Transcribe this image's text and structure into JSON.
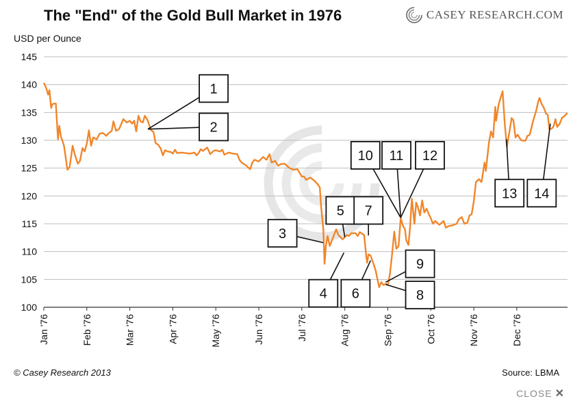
{
  "title": "The \"End\" of the Gold Bull Market in 1976",
  "brand": "CASEY RESEARCH.COM",
  "copyright": "© Casey Research 2013",
  "source": "Source: LBMA",
  "close_label": "CLOSE",
  "colors": {
    "line": "#f0862a",
    "grid": "#bdbdbd",
    "axis": "#333333",
    "box_border": "#111111"
  },
  "chart_data": {
    "type": "line",
    "title": "The \"End\" of the Gold Bull Market in 1976",
    "xlabel": "",
    "ylabel": "USD per Ounce",
    "ylim": [
      100,
      145
    ],
    "yticks": [
      100,
      105,
      110,
      115,
      120,
      125,
      130,
      135,
      140,
      145
    ],
    "grid": true,
    "months": [
      "Jan '76",
      "Feb '76",
      "Mar '76",
      "Apr '76",
      "May '76",
      "Jun '76",
      "Jul '76",
      "Aug '76",
      "Sep '76",
      "Oct '76",
      "Nov '76",
      "Dec '76"
    ],
    "series": [
      {
        "values": [
          [
            0,
            140.3
          ],
          [
            0.05,
            139.5
          ],
          [
            0.08,
            138.8
          ],
          [
            0.1,
            138.2
          ],
          [
            0.13,
            139.0
          ],
          [
            0.17,
            135.8
          ],
          [
            0.2,
            136.5
          ],
          [
            0.25,
            136.6
          ],
          [
            0.28,
            136.6
          ],
          [
            0.31,
            132.6
          ],
          [
            0.33,
            130.2
          ],
          [
            0.36,
            132.6
          ],
          [
            0.4,
            130.6
          ],
          [
            0.43,
            130.0
          ],
          [
            0.47,
            129.0
          ],
          [
            0.55,
            124.7
          ],
          [
            0.6,
            125.2
          ],
          [
            0.67,
            129.0
          ],
          [
            0.72,
            127.5
          ],
          [
            0.79,
            125.8
          ],
          [
            0.84,
            126.3
          ],
          [
            0.9,
            128.6
          ],
          [
            0.95,
            128.0
          ],
          [
            1.0,
            129.4
          ],
          [
            1.05,
            131.8
          ],
          [
            1.1,
            129.0
          ],
          [
            1.15,
            130.5
          ],
          [
            1.23,
            130.2
          ],
          [
            1.3,
            131.2
          ],
          [
            1.38,
            131.3
          ],
          [
            1.45,
            130.8
          ],
          [
            1.5,
            131.2
          ],
          [
            1.58,
            131.7
          ],
          [
            1.62,
            133.4
          ],
          [
            1.68,
            131.7
          ],
          [
            1.75,
            132.0
          ],
          [
            1.85,
            133.8
          ],
          [
            1.93,
            133.2
          ],
          [
            2.0,
            133.5
          ],
          [
            2.05,
            133.0
          ],
          [
            2.1,
            133.5
          ],
          [
            2.15,
            131.6
          ],
          [
            2.2,
            134.4
          ],
          [
            2.25,
            133.4
          ],
          [
            2.3,
            133.2
          ],
          [
            2.35,
            134.4
          ],
          [
            2.42,
            133.5
          ],
          [
            2.48,
            132.0
          ],
          [
            2.5,
            131.8
          ],
          [
            2.55,
            131.5
          ],
          [
            2.6,
            129.5
          ],
          [
            2.66,
            129.2
          ],
          [
            2.72,
            128.5
          ],
          [
            2.77,
            127.3
          ],
          [
            2.82,
            128.2
          ],
          [
            2.88,
            128.0
          ],
          [
            2.95,
            127.9
          ],
          [
            3.0,
            127.6
          ],
          [
            3.05,
            128.3
          ],
          [
            3.1,
            127.7
          ],
          [
            3.2,
            127.8
          ],
          [
            3.3,
            127.7
          ],
          [
            3.4,
            127.6
          ],
          [
            3.5,
            127.8
          ],
          [
            3.55,
            127.3
          ],
          [
            3.6,
            127.7
          ],
          [
            3.65,
            128.4
          ],
          [
            3.7,
            128.1
          ],
          [
            3.8,
            128.7
          ],
          [
            3.87,
            127.5
          ],
          [
            3.95,
            128.1
          ],
          [
            4.0,
            128.2
          ],
          [
            4.1,
            128.0
          ],
          [
            4.15,
            128.3
          ],
          [
            4.2,
            127.4
          ],
          [
            4.3,
            127.8
          ],
          [
            4.4,
            127.6
          ],
          [
            4.5,
            127.5
          ],
          [
            4.55,
            126.5
          ],
          [
            4.6,
            126.0
          ],
          [
            4.7,
            125.5
          ],
          [
            4.8,
            124.8
          ],
          [
            4.85,
            126.0
          ],
          [
            4.9,
            126.5
          ],
          [
            5.0,
            126.2
          ],
          [
            5.1,
            127.0
          ],
          [
            5.18,
            126.5
          ],
          [
            5.25,
            127.5
          ],
          [
            5.3,
            126.0
          ],
          [
            5.38,
            126.3
          ],
          [
            5.45,
            125.4
          ],
          [
            5.5,
            125.7
          ],
          [
            5.6,
            125.8
          ],
          [
            5.7,
            125.1
          ],
          [
            5.8,
            124.7
          ],
          [
            5.9,
            124.8
          ],
          [
            6.0,
            123.5
          ],
          [
            6.05,
            123.5
          ],
          [
            6.1,
            122.9
          ],
          [
            6.2,
            123.3
          ],
          [
            6.3,
            122.7
          ],
          [
            6.38,
            122.0
          ],
          [
            6.42,
            121.5
          ],
          [
            6.45,
            118.0
          ],
          [
            6.5,
            114.0
          ],
          [
            6.53,
            107.8
          ],
          [
            6.56,
            111.0
          ],
          [
            6.6,
            112.8
          ],
          [
            6.65,
            111.0
          ],
          [
            6.7,
            112.0
          ],
          [
            6.8,
            114.0
          ],
          [
            6.85,
            113.0
          ],
          [
            6.9,
            112.6
          ],
          [
            6.95,
            112.2
          ],
          [
            7.0,
            112.6
          ],
          [
            7.05,
            113.0
          ],
          [
            7.1,
            112.8
          ],
          [
            7.15,
            113.3
          ],
          [
            7.25,
            113.3
          ],
          [
            7.3,
            112.8
          ],
          [
            7.35,
            113.5
          ],
          [
            7.4,
            113.2
          ],
          [
            7.45,
            113.0
          ],
          [
            7.5,
            109.0
          ],
          [
            7.52,
            108.0
          ],
          [
            7.55,
            109.5
          ],
          [
            7.6,
            109.3
          ],
          [
            7.68,
            107.5
          ],
          [
            7.72,
            106.5
          ],
          [
            7.76,
            105.0
          ],
          [
            7.8,
            103.6
          ],
          [
            7.85,
            104.5
          ],
          [
            7.9,
            104.0
          ],
          [
            7.95,
            104.2
          ],
          [
            8.0,
            104.0
          ],
          [
            8.05,
            106.0
          ],
          [
            8.1,
            109.5
          ],
          [
            8.15,
            113.6
          ],
          [
            8.2,
            110.5
          ],
          [
            8.25,
            111.0
          ],
          [
            8.3,
            116.0
          ],
          [
            8.35,
            114.7
          ],
          [
            8.4,
            114.0
          ],
          [
            8.43,
            112.0
          ],
          [
            8.48,
            111.2
          ],
          [
            8.52,
            114.5
          ],
          [
            8.56,
            119.5
          ],
          [
            8.62,
            115.0
          ],
          [
            8.66,
            118.8
          ],
          [
            8.7,
            118.0
          ],
          [
            8.75,
            116.5
          ],
          [
            8.8,
            119.2
          ],
          [
            8.85,
            117.0
          ],
          [
            8.9,
            117.7
          ],
          [
            8.95,
            116.8
          ],
          [
            9.0,
            116.0
          ],
          [
            9.05,
            115.0
          ],
          [
            9.1,
            115.5
          ],
          [
            9.2,
            114.8
          ],
          [
            9.3,
            115.5
          ],
          [
            9.35,
            114.3
          ],
          [
            9.42,
            114.6
          ],
          [
            9.5,
            114.7
          ],
          [
            9.6,
            115.0
          ],
          [
            9.65,
            115.8
          ],
          [
            9.72,
            116.2
          ],
          [
            9.78,
            115.0
          ],
          [
            9.85,
            115.2
          ],
          [
            9.9,
            116.5
          ],
          [
            9.95,
            116.7
          ],
          [
            10.0,
            119.0
          ],
          [
            10.05,
            122.5
          ],
          [
            10.12,
            123.0
          ],
          [
            10.18,
            122.5
          ],
          [
            10.25,
            126.0
          ],
          [
            10.28,
            124.5
          ],
          [
            10.35,
            129.5
          ],
          [
            10.4,
            131.6
          ],
          [
            10.45,
            130.5
          ],
          [
            10.5,
            136.0
          ],
          [
            10.52,
            133.5
          ],
          [
            10.58,
            136.5
          ],
          [
            10.63,
            137.8
          ],
          [
            10.67,
            138.8
          ],
          [
            10.72,
            133.0
          ],
          [
            10.77,
            128.8
          ],
          [
            10.83,
            131.6
          ],
          [
            10.88,
            134.0
          ],
          [
            10.92,
            133.6
          ],
          [
            10.97,
            130.5
          ],
          [
            11.02,
            131.0
          ],
          [
            11.1,
            130.0
          ],
          [
            11.2,
            129.9
          ],
          [
            11.25,
            130.8
          ],
          [
            11.3,
            131.0
          ],
          [
            11.38,
            133.5
          ],
          [
            11.45,
            135.3
          ],
          [
            11.5,
            137.0
          ],
          [
            11.53,
            137.6
          ],
          [
            11.58,
            136.5
          ],
          [
            11.63,
            135.8
          ],
          [
            11.68,
            134.8
          ],
          [
            11.72,
            134.6
          ],
          [
            11.76,
            131.9
          ],
          [
            11.83,
            132.2
          ],
          [
            11.86,
            132.6
          ],
          [
            11.9,
            133.8
          ],
          [
            11.94,
            132.4
          ],
          [
            12.0,
            133.0
          ],
          [
            12.05,
            134.0
          ],
          [
            12.1,
            134.3
          ],
          [
            12.15,
            134.7
          ],
          [
            12.18,
            134.9
          ]
        ]
      }
    ],
    "annotations": [
      "1",
      "2",
      "3",
      "4",
      "5",
      "6",
      "7",
      "8",
      "9",
      "10",
      "11",
      "12",
      "13",
      "14"
    ]
  }
}
